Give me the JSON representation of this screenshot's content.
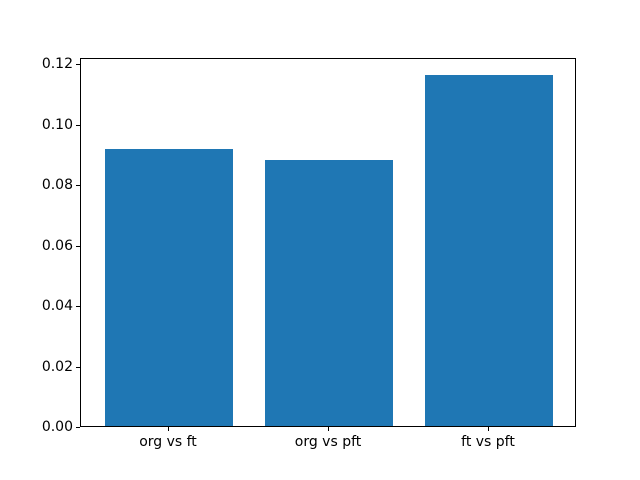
{
  "chart_data": {
    "type": "bar",
    "categories": [
      "org vs ft",
      "org vs pft",
      "ft vs pft"
    ],
    "values": [
      0.0915,
      0.0878,
      0.1162
    ],
    "title": "",
    "xlabel": "",
    "ylabel": "",
    "ylim": [
      0,
      0.122
    ],
    "xlim": [
      -0.55,
      2.55
    ],
    "yticks": [
      0.0,
      0.02,
      0.04,
      0.06,
      0.08,
      0.1,
      0.12
    ],
    "ytick_labels": [
      "0.00",
      "0.02",
      "0.04",
      "0.06",
      "0.08",
      "0.10",
      "0.12"
    ],
    "bar_color": "#1f77b4",
    "bar_width_fraction": 0.8,
    "grid": false,
    "legend": null,
    "background_color": "#ffffff",
    "spine_color": "#000000"
  }
}
